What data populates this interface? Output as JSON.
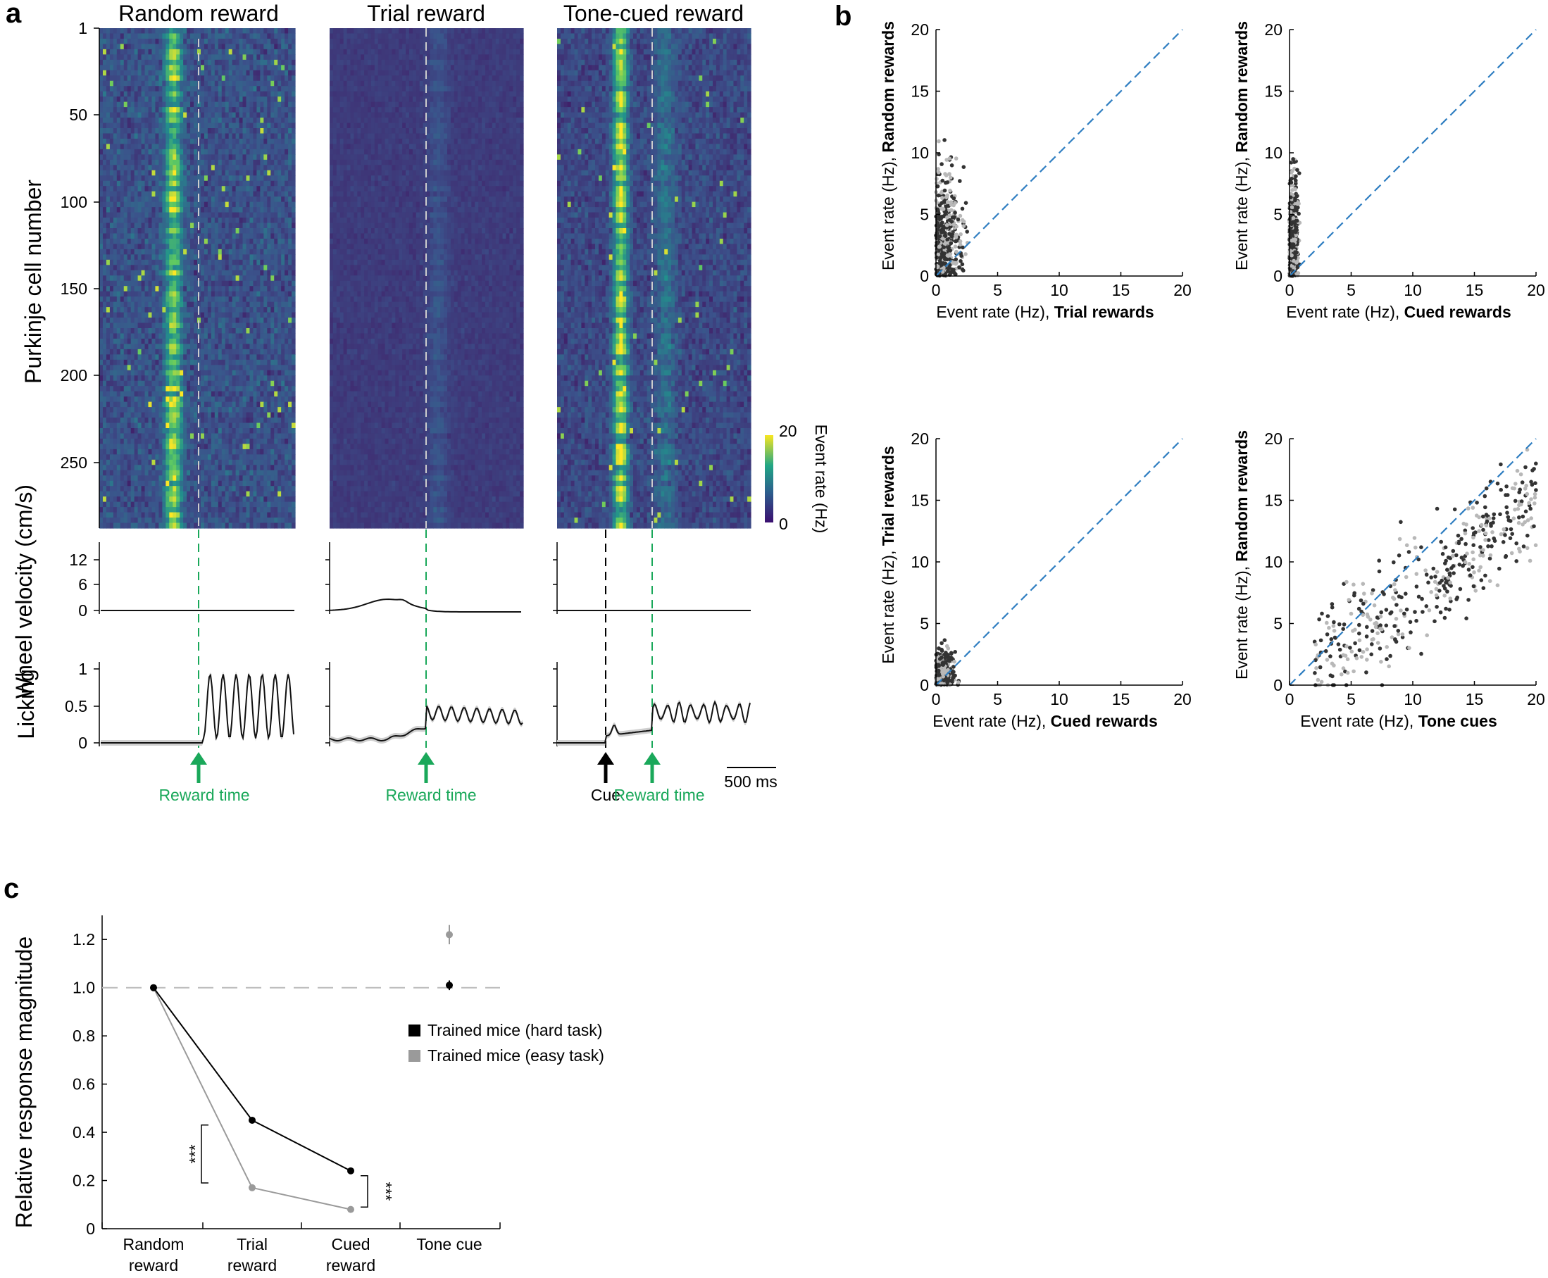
{
  "panel_a": {
    "label": "a",
    "titles": [
      "Random reward",
      "Trial reward",
      "Tone-cued reward"
    ],
    "heatmap_ylabel": "Purkinje cell number",
    "heatmap_yticks": [
      "1",
      "50",
      "100",
      "150",
      "200",
      "250"
    ],
    "colorbar": {
      "label": "Event rate (Hz)",
      "max_label": "20",
      "min_label": "0"
    },
    "velocity_ylabel": "Wheel velocity (cm/s)",
    "velocity_yticks": [
      "12",
      "6",
      "0"
    ],
    "licking_ylabel": "Licking",
    "licking_yticks": [
      "1",
      "0.5",
      "0"
    ],
    "reward_label": "Reward time",
    "cue_label": "Cue",
    "scalebar_label": "500 ms",
    "colors": {
      "reward": "#1aa85a",
      "cue": "#000000",
      "heat_low": "#3b0f70",
      "heat_high": "#f8e621"
    }
  },
  "panel_b": {
    "label": "b",
    "diag_color": "#2f7ec1",
    "ticks": [
      "0",
      "5",
      "10",
      "15",
      "20"
    ],
    "plots": [
      {
        "ylabel_plain": "Event rate (Hz), ",
        "ylabel_bold": "Random rewards",
        "xlabel_plain": "Event rate (Hz), ",
        "xlabel_bold": "Trial rewards"
      },
      {
        "ylabel_plain": "Event rate (Hz), ",
        "ylabel_bold": "Random rewards",
        "xlabel_plain": "Event rate (Hz), ",
        "xlabel_bold": "Cued rewards"
      },
      {
        "ylabel_plain": "Event rate (Hz), ",
        "ylabel_bold": "Trial rewards",
        "xlabel_plain": "Event rate (Hz), ",
        "xlabel_bold": "Cued rewards"
      },
      {
        "ylabel_plain": "Event rate (Hz), ",
        "ylabel_bold": "Random rewards",
        "xlabel_plain": "Event rate (Hz), ",
        "xlabel_bold": "Tone cues"
      }
    ]
  },
  "panel_c": {
    "label": "c",
    "significance": "***",
    "yticks": [
      "0",
      "0.2",
      "0.4",
      "0.6",
      "0.8",
      "1.0",
      "1.2"
    ]
  },
  "chart_data": {
    "type": "line",
    "title": "",
    "xlabel": "",
    "ylabel": "Relative response magnitude",
    "categories": [
      "Random reward",
      "Trial reward",
      "Cued reward",
      "Tone cue"
    ],
    "ylim": [
      0,
      1.3
    ],
    "reference_line": 1.0,
    "series": [
      {
        "name": "Trained mice (hard task)",
        "color": "#000000",
        "values": [
          1.0,
          0.45,
          0.24,
          null
        ],
        "tone_cue": {
          "value": 1.01,
          "err": 0.02
        }
      },
      {
        "name": "Trained mice (easy task)",
        "color": "#9a9a9a",
        "values": [
          1.0,
          0.17,
          0.08,
          null
        ],
        "tone_cue": {
          "value": 1.22,
          "err": 0.04
        }
      }
    ]
  }
}
